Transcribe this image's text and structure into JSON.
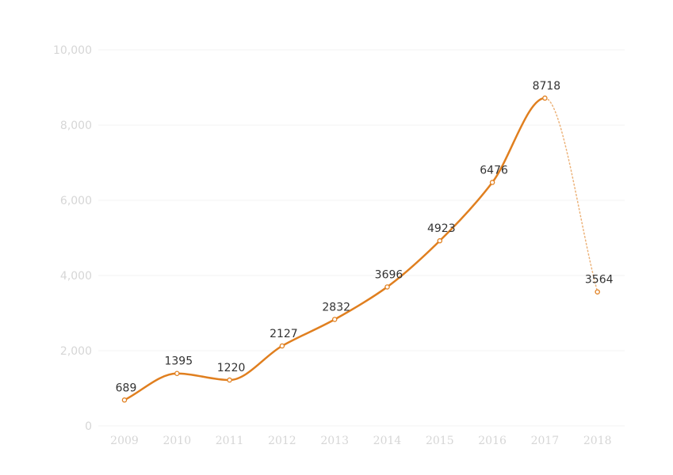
{
  "chart_data": {
    "type": "line",
    "title": "",
    "xlabel": "",
    "ylabel": "",
    "x": [
      "2009",
      "2010",
      "2011",
      "2012",
      "2013",
      "2014",
      "2015",
      "2016",
      "2017",
      "2018"
    ],
    "series": [
      {
        "values": [
          689,
          1395,
          1220,
          2127,
          2832,
          3696,
          4923,
          6476,
          8718,
          3564
        ],
        "data_labels": [
          "689",
          "1395",
          "1220",
          "2127",
          "2832",
          "3696",
          "4923",
          "6476",
          "8718",
          "3564"
        ],
        "color": "#e07f1f",
        "last_segment_style": "dotted"
      }
    ],
    "ylim": [
      0,
      10000
    ],
    "yticks": [
      0,
      2000,
      4000,
      6000,
      8000,
      10000
    ],
    "ytick_labels": [
      "0",
      "2,000",
      "4,000",
      "6,000",
      "8,000",
      "10,000"
    ],
    "grid": "horizontal",
    "legend": "none",
    "colors": {
      "gridline": "#f3f3f3",
      "axis_text": "#d6d6d6",
      "label_text": "#333333"
    }
  }
}
